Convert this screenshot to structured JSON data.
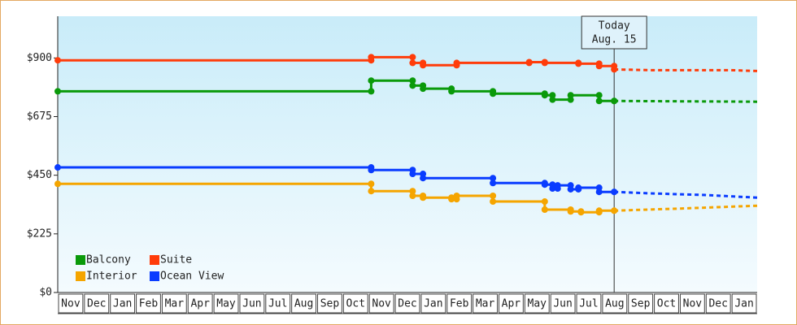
{
  "chart_data": {
    "type": "step-line",
    "xlim": [
      0,
      27
    ],
    "xticks": [
      {
        "value": 0.5,
        "label": "Nov"
      },
      {
        "value": 1.5,
        "label": "Dec"
      },
      {
        "value": 2.5,
        "label": "Jan"
      },
      {
        "value": 3.5,
        "label": "Feb"
      },
      {
        "value": 4.5,
        "label": "Mar"
      },
      {
        "value": 5.5,
        "label": "Apr"
      },
      {
        "value": 6.5,
        "label": "May"
      },
      {
        "value": 7.5,
        "label": "Jun"
      },
      {
        "value": 8.5,
        "label": "Jul"
      },
      {
        "value": 9.5,
        "label": "Aug"
      },
      {
        "value": 10.5,
        "label": "Sep"
      },
      {
        "value": 11.5,
        "label": "Oct"
      },
      {
        "value": 12.5,
        "label": "Nov"
      },
      {
        "value": 13.5,
        "label": "Dec"
      },
      {
        "value": 14.5,
        "label": "Jan"
      },
      {
        "value": 15.5,
        "label": "Feb"
      },
      {
        "value": 16.5,
        "label": "Mar"
      },
      {
        "value": 17.5,
        "label": "Apr"
      },
      {
        "value": 18.5,
        "label": "May"
      },
      {
        "value": 19.5,
        "label": "Jun"
      },
      {
        "value": 20.5,
        "label": "Jul"
      },
      {
        "value": 21.5,
        "label": "Aug"
      },
      {
        "value": 22.5,
        "label": "Sep"
      },
      {
        "value": 23.5,
        "label": "Oct"
      },
      {
        "value": 24.5,
        "label": "Nov"
      },
      {
        "value": 25.5,
        "label": "Dec"
      },
      {
        "value": 26.5,
        "label": "Jan"
      }
    ],
    "ylim": [
      0,
      1060
    ],
    "yticks": [
      {
        "value": 0,
        "label": "$0"
      },
      {
        "value": 225,
        "label": "$225"
      },
      {
        "value": 450,
        "label": "$450"
      },
      {
        "value": 675,
        "label": "$675"
      },
      {
        "value": 900,
        "label": "$900"
      }
    ],
    "today": {
      "x": 21.48,
      "label": "Today",
      "date": "Aug. 15"
    },
    "series": [
      {
        "name": "Balcony",
        "color": "#0a9a0a",
        "x": [
          0,
          12.1,
          13.7,
          14.1,
          15.2,
          16.8,
          18.8,
          19.1,
          19.8,
          20.9,
          21.48
        ],
        "values": [
          772,
          813,
          794,
          782,
          772,
          763,
          757,
          740,
          757,
          735,
          735
        ],
        "forecast_x": [
          21.48,
          27
        ],
        "forecast_values": [
          735,
          732
        ]
      },
      {
        "name": "Suite",
        "color": "#ff3c0a",
        "x": [
          0,
          12.1,
          13.7,
          14.1,
          15.4,
          18.2,
          18.8,
          20.1,
          20.9,
          21.48
        ],
        "values": [
          891,
          903,
          881,
          872,
          881,
          884,
          881,
          878,
          869,
          856
        ],
        "forecast_x": [
          21.48,
          23,
          26,
          27
        ],
        "forecast_values": [
          856,
          853,
          853,
          850
        ]
      },
      {
        "name": "Interior",
        "color": "#f5a500",
        "x": [
          0,
          12.1,
          13.7,
          14.1,
          15.2,
          15.4,
          16.8,
          18.8,
          19.8,
          20.2,
          20.9,
          21.48
        ],
        "values": [
          417,
          389,
          371,
          364,
          358,
          371,
          349,
          318,
          311,
          308,
          314,
          314
        ],
        "forecast_x": [
          21.48,
          24,
          27
        ],
        "forecast_values": [
          314,
          322,
          333
        ]
      },
      {
        "name": "Ocean View",
        "color": "#0a3cff",
        "x": [
          0,
          12.1,
          13.7,
          14.1,
          16.8,
          18.8,
          19.1,
          19.3,
          19.8,
          20.1,
          20.9,
          21.48
        ],
        "values": [
          480,
          470,
          455,
          439,
          420,
          414,
          399,
          411,
          396,
          402,
          386,
          386
        ],
        "forecast_x": [
          21.48,
          23,
          25,
          27
        ],
        "forecast_values": [
          386,
          380,
          374,
          364
        ]
      }
    ]
  }
}
